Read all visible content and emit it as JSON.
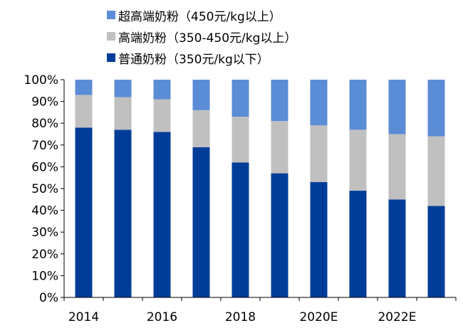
{
  "chart_data": {
    "type": "bar",
    "stacked": true,
    "categories": [
      "2014",
      "2015",
      "2016",
      "2017",
      "2018",
      "2019",
      "2020E",
      "2021E",
      "2022E",
      "2023E"
    ],
    "x_tick_labels": [
      "2014",
      "2016",
      "2018",
      "2020E",
      "2022E"
    ],
    "series": [
      {
        "name": "普通奶粉（350元/kg以下）",
        "color": "#003d99",
        "values": [
          78,
          77,
          76,
          69,
          62,
          57,
          53,
          49,
          45,
          42
        ]
      },
      {
        "name": "高端奶粉（350-450元/kg以上）",
        "color": "#c0c0c0",
        "values": [
          15,
          15,
          15,
          17,
          21,
          24,
          26,
          28,
          30,
          32
        ]
      },
      {
        "name": "超高端奶粉（450元/kg以上）",
        "color": "#5b8dd6",
        "values": [
          7,
          8,
          9,
          14,
          17,
          19,
          21,
          23,
          25,
          26
        ]
      }
    ],
    "legend_order": [
      2,
      1,
      0
    ],
    "y_ticks": [
      "0%",
      "10%",
      "20%",
      "30%",
      "40%",
      "50%",
      "60%",
      "70%",
      "80%",
      "90%",
      "100%"
    ],
    "ylim": [
      0,
      100
    ],
    "legend_position": "top-left",
    "grid": false
  }
}
